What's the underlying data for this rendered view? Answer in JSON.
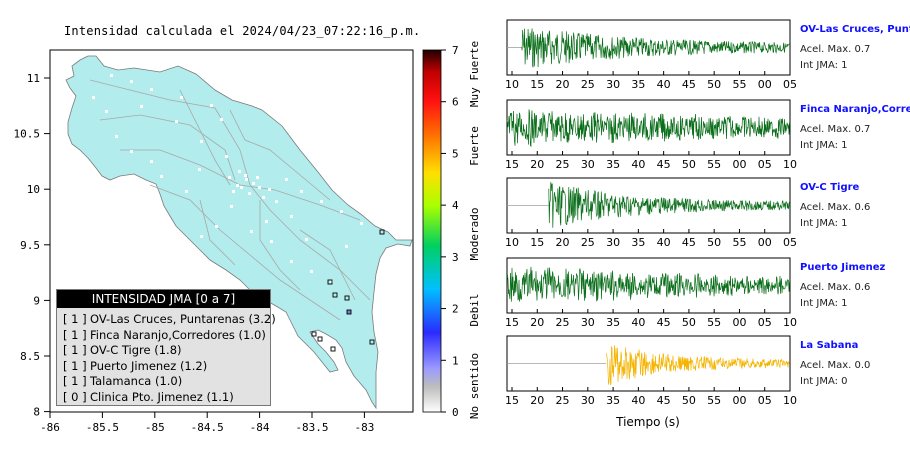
{
  "title": "Intensidad calculada el 2024/04/23_07:22:16_p.m.",
  "colors": {
    "land": "#b2ecec",
    "trace_active": "#0a6e1a",
    "trace_low": "#f5b400",
    "station_name": "#1010ff"
  },
  "map": {
    "x_ticks": [
      "-86",
      "-85.5",
      "-85",
      "-84.5",
      "-84",
      "-83.5",
      "-83"
    ],
    "y_ticks": [
      "11",
      "10.5",
      "10",
      "9.5",
      "9",
      "8.5",
      "8"
    ],
    "xlim": [
      -86,
      -82.55
    ],
    "ylim": [
      8,
      11.35
    ]
  },
  "colorbar": {
    "ticks": [
      "0",
      "1",
      "2",
      "3",
      "4",
      "5",
      "6",
      "7"
    ],
    "categories": [
      "No sentido",
      "Debil",
      "Moderado",
      "Fuerte",
      "Muy Fuerte"
    ]
  },
  "legend": {
    "title": "INTENSIDAD JMA [0 a 7]",
    "rows": [
      {
        "int": "[ 1 ]",
        "name": "OV-Las Cruces, Puntarenas (3.2)"
      },
      {
        "int": "[ 1 ]",
        "name": "Finca Naranjo,Corredores (1.0)"
      },
      {
        "int": "[ 1 ]",
        "name": "OV-C Tigre (1.8)"
      },
      {
        "int": "[ 1 ]",
        "name": "Puerto Jimenez (1.2)"
      },
      {
        "int": "[ 1 ]",
        "name": "Talamanca (1.0)"
      },
      {
        "int": "[ 0 ]",
        "name": "Clinica Pto. Jimenez (1.1)"
      }
    ]
  },
  "chart_data": {
    "type": "line",
    "xlabel": "Tiempo (s)",
    "stations": [
      {
        "name": "OV-Las Cruces, Puntarenas",
        "accel": "Acel. Max. 0.7",
        "jma": "Int JMA: 1",
        "ticks": [
          "10",
          "15",
          "20",
          "25",
          "30",
          "35",
          "40",
          "45",
          "50",
          "55",
          "00",
          "05"
        ],
        "x0": 10,
        "x1": 68,
        "onset": 13,
        "amp": 0.9,
        "decay": 0.045
      },
      {
        "name": "Finca Naranjo,Corredores",
        "accel": "Acel. Max. 0.7",
        "jma": "Int JMA: 1",
        "ticks": [
          "15",
          "20",
          "25",
          "30",
          "35",
          "40",
          "45",
          "50",
          "55",
          "00",
          "05",
          "10"
        ],
        "x0": 10,
        "x1": 70,
        "onset": 10,
        "amp": 0.8,
        "decay": 0.012
      },
      {
        "name": "OV-C Tigre",
        "accel": "Acel. Max. 0.6",
        "jma": "Int JMA: 1",
        "ticks": [
          "10",
          "15",
          "20",
          "25",
          "30",
          "35",
          "40",
          "45",
          "50",
          "55",
          "00",
          "05"
        ],
        "x0": 7,
        "x1": 68,
        "onset": 16,
        "amp": 0.95,
        "decay": 0.06
      },
      {
        "name": "Puerto Jimenez",
        "accel": "Acel. Max. 0.6",
        "jma": "Int JMA: 1",
        "ticks": [
          "15",
          "20",
          "25",
          "30",
          "35",
          "40",
          "45",
          "50",
          "55",
          "00",
          "05",
          "10"
        ],
        "x0": 10,
        "x1": 70,
        "onset": 10,
        "amp": 0.85,
        "decay": 0.018
      },
      {
        "name": "La Sabana",
        "accel": "Acel. Max. 0.0",
        "jma": "Int JMA: 0",
        "ticks": [
          "15",
          "20",
          "25",
          "30",
          "35",
          "40",
          "45",
          "50",
          "55",
          "00",
          "05",
          "10"
        ],
        "x0": 10,
        "x1": 70,
        "onset": 31,
        "amp": 0.95,
        "decay": 0.09
      }
    ]
  }
}
